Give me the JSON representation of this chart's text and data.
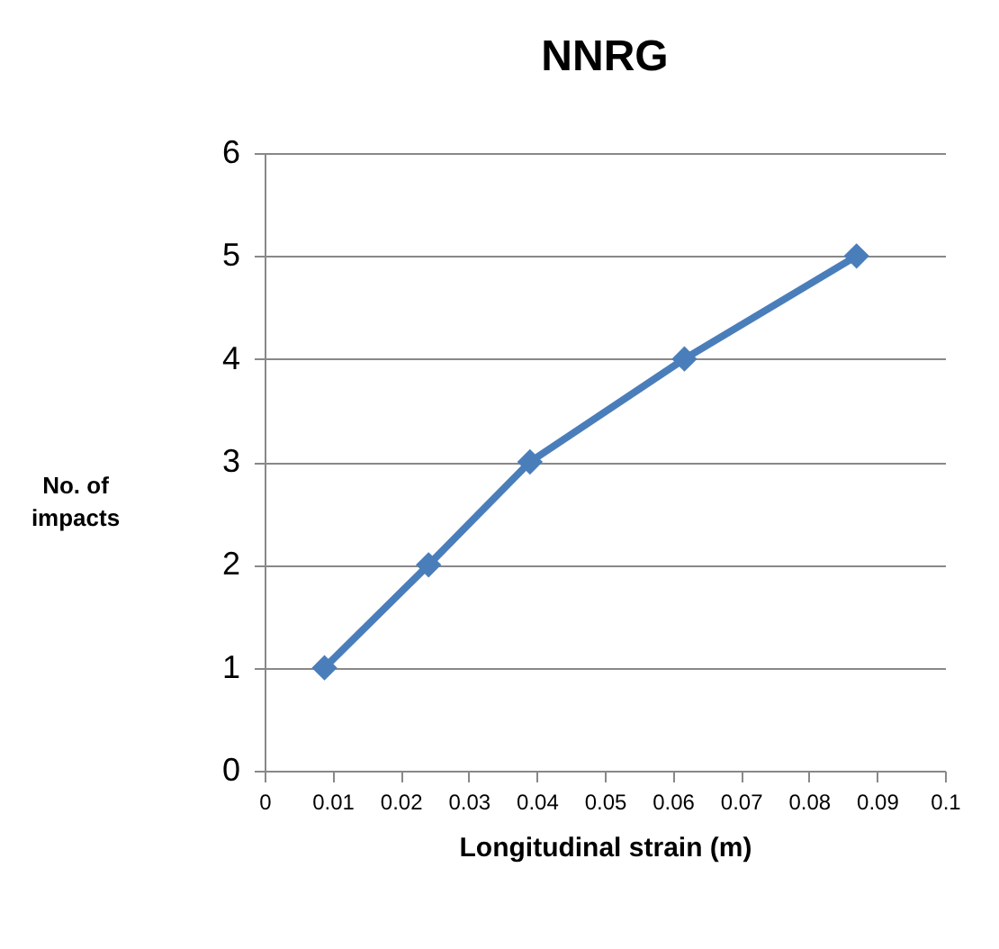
{
  "chart_data": {
    "type": "line",
    "title": "NNRG",
    "xlabel": "Longitudinal strain (m)",
    "ylabel": "No. of impacts",
    "x": [
      0.0088,
      0.0241,
      0.039,
      0.0617,
      0.087
    ],
    "series": [
      {
        "color": "#4a7ebb",
        "values": [
          1,
          2,
          3,
          4,
          5
        ]
      }
    ],
    "xlim": [
      0,
      0.1
    ],
    "xticks": [
      0,
      0.01,
      0.02,
      0.03,
      0.04,
      0.05,
      0.06,
      0.07,
      0.08,
      0.09,
      0.1
    ],
    "ylim": [
      0,
      6
    ],
    "yticks": [
      0,
      1,
      2,
      3,
      4,
      5,
      6
    ],
    "grid": "y",
    "marker": "diamond",
    "line_style": "solid"
  }
}
